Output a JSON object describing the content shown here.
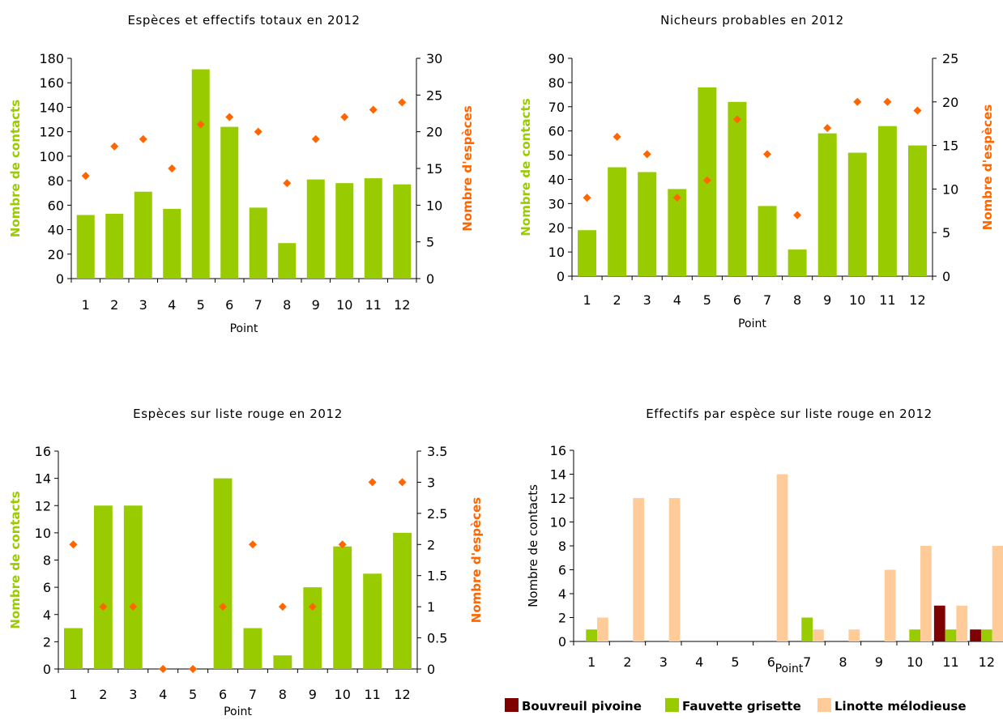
{
  "colors": {
    "contacts_bar": "#99CC00",
    "species_marker": "#FF6600",
    "bouvreuil": "#7F0000",
    "fauvette": "#99CC00",
    "linotte": "#FFCC99"
  },
  "chart_data": [
    {
      "type": "bar",
      "title": "Espèces et effectifs totaux en 2012",
      "xlabel": "Point",
      "categories": [
        "1",
        "2",
        "3",
        "4",
        "5",
        "6",
        "7",
        "8",
        "9",
        "10",
        "11",
        "12"
      ],
      "series": [
        {
          "name": "Nombre de contacts",
          "axis": "left",
          "kind": "bar",
          "values": [
            52,
            53,
            71,
            57,
            171,
            124,
            58,
            29,
            81,
            78,
            82,
            77
          ]
        },
        {
          "name": "Nombre d'espèces",
          "axis": "right",
          "kind": "scatter",
          "values": [
            14,
            18,
            19,
            15,
            21,
            22,
            20,
            13,
            19,
            22,
            23,
            24
          ]
        }
      ],
      "ylabel_left": "Nombre de contacts",
      "ylabel_right": "Nombre d'espèces",
      "ylim_left": [
        0,
        180
      ],
      "yticks_left": [
        "0",
        "20",
        "40",
        "60",
        "80",
        "100",
        "120",
        "140",
        "160",
        "180"
      ],
      "ylim_right": [
        0,
        30
      ],
      "yticks_right": [
        "0",
        "5",
        "10",
        "15",
        "20",
        "25",
        "30"
      ]
    },
    {
      "type": "bar",
      "title": "Nicheurs probables en 2012",
      "xlabel": "Point",
      "categories": [
        "1",
        "2",
        "3",
        "4",
        "5",
        "6",
        "7",
        "8",
        "9",
        "10",
        "11",
        "12"
      ],
      "series": [
        {
          "name": "Nombre de contacts",
          "axis": "left",
          "kind": "bar",
          "values": [
            19,
            45,
            43,
            36,
            78,
            72,
            29,
            11,
            59,
            51,
            62,
            54
          ]
        },
        {
          "name": "Nombre d'espèces",
          "axis": "right",
          "kind": "scatter",
          "values": [
            9,
            16,
            14,
            9,
            11,
            18,
            14,
            7,
            17,
            20,
            20,
            19
          ]
        }
      ],
      "ylabel_left": "Nombre de contacts",
      "ylabel_right": "Nombre d'espèces",
      "ylim_left": [
        0,
        90
      ],
      "yticks_left": [
        "0",
        "10",
        "20",
        "30",
        "40",
        "50",
        "60",
        "70",
        "80",
        "90"
      ],
      "ylim_right": [
        0,
        25
      ],
      "yticks_right": [
        "0",
        "5",
        "10",
        "15",
        "20",
        "25"
      ]
    },
    {
      "type": "bar",
      "title": "Espèces sur liste rouge en 2012",
      "xlabel": "Point",
      "categories": [
        "1",
        "2",
        "3",
        "4",
        "5",
        "6",
        "7",
        "8",
        "9",
        "10",
        "11",
        "12"
      ],
      "series": [
        {
          "name": "Nombre de contacts",
          "axis": "left",
          "kind": "bar",
          "values": [
            3,
            12,
            12,
            0,
            0,
            14,
            3,
            1,
            6,
            9,
            7,
            10
          ]
        },
        {
          "name": "Nombre d'espèces",
          "axis": "right",
          "kind": "scatter",
          "values": [
            2,
            1,
            1,
            0,
            0,
            1,
            2,
            1,
            1,
            2,
            3,
            3
          ]
        }
      ],
      "ylabel_left": "Nombre de contacts",
      "ylabel_right": "Nombre d'espèces",
      "ylim_left": [
        0,
        16
      ],
      "yticks_left": [
        "0",
        "2",
        "4",
        "6",
        "8",
        "10",
        "12",
        "14",
        "16"
      ],
      "ylim_right": [
        0,
        3.5
      ],
      "yticks_right": [
        "0",
        "0.5",
        "1",
        "1.5",
        "2",
        "2.5",
        "3",
        "3.5"
      ]
    },
    {
      "type": "bar",
      "title": "Effectifs par espèce sur liste rouge en 2012",
      "xlabel": "Point",
      "categories": [
        "1",
        "2",
        "3",
        "4",
        "5",
        "6",
        "7",
        "8",
        "9",
        "10",
        "11",
        "12"
      ],
      "series": [
        {
          "name": "Bouvreuil pivoine",
          "values": [
            0,
            0,
            0,
            0,
            0,
            0,
            0,
            0,
            0,
            0,
            3,
            1
          ]
        },
        {
          "name": "Fauvette grisette",
          "values": [
            1,
            0,
            0,
            0,
            0,
            0,
            2,
            0,
            0,
            1,
            1,
            1
          ]
        },
        {
          "name": "Linotte mélodieuse",
          "values": [
            2,
            12,
            12,
            0,
            0,
            14,
            1,
            1,
            6,
            8,
            3,
            8
          ]
        }
      ],
      "ylabel_left": "Nombre de contacts",
      "ylim_left": [
        0,
        16
      ],
      "yticks_left": [
        "0",
        "2",
        "4",
        "6",
        "8",
        "10",
        "12",
        "14",
        "16"
      ],
      "legend": "bottom"
    }
  ]
}
